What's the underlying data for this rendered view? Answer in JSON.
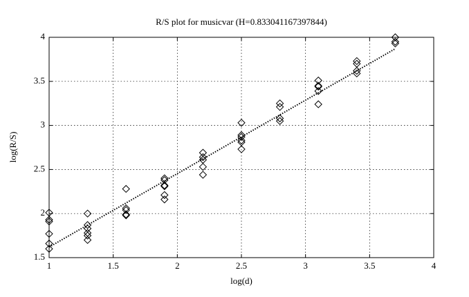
{
  "chart_data": {
    "type": "scatter",
    "title": "R/S plot for musicvar (H=0.833041167397844)",
    "x_label": "log(d)",
    "y_label": "log(R/S)",
    "xlim": [
      1,
      4
    ],
    "xticks": [
      1,
      1.5,
      2,
      2.5,
      3,
      3.5,
      4
    ],
    "ylim": [
      1.5,
      4
    ],
    "yticks": [
      1.5,
      2,
      2.5,
      3,
      3.5,
      4
    ],
    "grid": true,
    "series": [
      {
        "type": "scatter",
        "marker": "diamond",
        "color": "#000000",
        "x": [
          1,
          1,
          1,
          1,
          1,
          1,
          1.3,
          1.3,
          1.3,
          1.3,
          1.3,
          1.3,
          1.6,
          1.6,
          1.6,
          1.6,
          1.6,
          1.9,
          1.9,
          1.9,
          1.9,
          1.9,
          1.9,
          2.2,
          2.2,
          2.2,
          2.2,
          2.2,
          2.5,
          2.5,
          2.5,
          2.5,
          2.5,
          2.5,
          2.8,
          2.8,
          2.8,
          2.8,
          3.1,
          3.1,
          3.1,
          3.1,
          3.1,
          3.4,
          3.4,
          3.4,
          3.4,
          3.7,
          3.7,
          3.7
        ],
        "values": [
          2.01,
          1.93,
          1.91,
          1.77,
          1.66,
          1.6,
          2.0,
          1.87,
          1.83,
          1.78,
          1.75,
          1.7,
          2.28,
          2.06,
          2.04,
          1.99,
          1.98,
          2.4,
          2.38,
          2.32,
          2.31,
          2.21,
          2.16,
          2.69,
          2.64,
          2.61,
          2.53,
          2.44,
          3.03,
          2.89,
          2.87,
          2.83,
          2.81,
          2.73,
          3.25,
          3.21,
          3.08,
          3.05,
          3.51,
          3.45,
          3.44,
          3.39,
          3.24,
          3.73,
          3.7,
          3.62,
          3.59,
          4.0,
          3.95,
          3.93
        ]
      },
      {
        "type": "line",
        "style": "dotted",
        "color": "#000000",
        "x": [
          1,
          3.7
        ],
        "values": [
          1.62,
          3.87
        ]
      }
    ]
  }
}
